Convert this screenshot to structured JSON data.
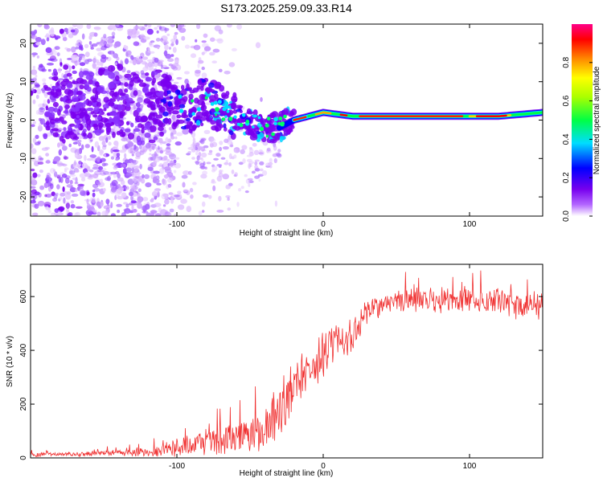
{
  "title": "S173.2025.259.09.33.R14",
  "chart_data": [
    {
      "type": "heatmap",
      "name": "spectrogram",
      "xlabel": "Height of straight line (km)",
      "ylabel": "Frequency (Hz)",
      "xlim": [
        -200,
        150
      ],
      "ylim": [
        -25,
        25
      ],
      "xticks": [
        -100,
        0,
        100
      ],
      "yticks": [
        -20,
        -10,
        0,
        10,
        20
      ],
      "xtick_labels": [
        "-100",
        "0",
        "100"
      ],
      "ytick_labels": [
        "-20",
        "-10",
        "0",
        "10",
        "20"
      ],
      "colorbar": {
        "label": "Normalized spectral amplitude",
        "range": [
          0,
          1
        ],
        "ticks": [
          0.0,
          0.2,
          0.4,
          0.6,
          0.8
        ],
        "tick_labels": [
          "0.0",
          "0.2",
          "0.4",
          "0.6",
          "0.8"
        ],
        "colormap": [
          "#ffffff",
          "#9900ff",
          "#0000ff",
          "#00ffff",
          "#00ff00",
          "#ffff00",
          "#ff8800",
          "#ff0000",
          "#ff0088"
        ]
      },
      "ridge": {
        "description": "Carrier frequency track",
        "x": [
          -110,
          -100,
          -90,
          -80,
          -70,
          -60,
          -50,
          -40,
          -30,
          -20,
          -10,
          0,
          20,
          50,
          80,
          100,
          120,
          150
        ],
        "freq": [
          6,
          4,
          3,
          5,
          3,
          1,
          -1,
          -2,
          -2,
          0,
          1,
          2,
          1,
          1,
          1,
          1,
          1,
          2
        ]
      }
    },
    {
      "type": "line",
      "name": "snr",
      "xlabel": "Height of straight line (km)",
      "ylabel": "SNR (10 * v/v)",
      "xlim": [
        -200,
        150
      ],
      "ylim": [
        0,
        720
      ],
      "xticks": [
        -100,
        0,
        100
      ],
      "yticks": [
        0,
        200,
        400,
        600
      ],
      "xtick_labels": [
        "-100",
        "0",
        "100"
      ],
      "ytick_labels": [
        "0",
        "200",
        "400",
        "600"
      ],
      "color": "#f03030",
      "series": [
        {
          "name": "SNR",
          "x": [
            -200,
            -180,
            -160,
            -140,
            -120,
            -110,
            -100,
            -90,
            -80,
            -70,
            -60,
            -50,
            -40,
            -35,
            -30,
            -25,
            -20,
            -15,
            -10,
            -5,
            0,
            5,
            10,
            15,
            20,
            25,
            30,
            40,
            50,
            60,
            70,
            80,
            90,
            100,
            110,
            120,
            130,
            140,
            150
          ],
          "y": [
            12,
            14,
            15,
            18,
            22,
            28,
            38,
            50,
            62,
            72,
            80,
            90,
            110,
            140,
            170,
            210,
            250,
            290,
            320,
            350,
            380,
            410,
            430,
            440,
            460,
            500,
            540,
            570,
            580,
            585,
            590,
            585,
            590,
            590,
            585,
            580,
            575,
            570,
            575
          ],
          "noise_amplitude": [
            8,
            8,
            10,
            12,
            18,
            25,
            35,
            45,
            55,
            60,
            65,
            70,
            90,
            110,
            120,
            120,
            110,
            100,
            90,
            90,
            90,
            90,
            80,
            70,
            60,
            55,
            50,
            45,
            45,
            45,
            50,
            50,
            50,
            50,
            50,
            55,
            60,
            60,
            60
          ]
        }
      ]
    }
  ]
}
